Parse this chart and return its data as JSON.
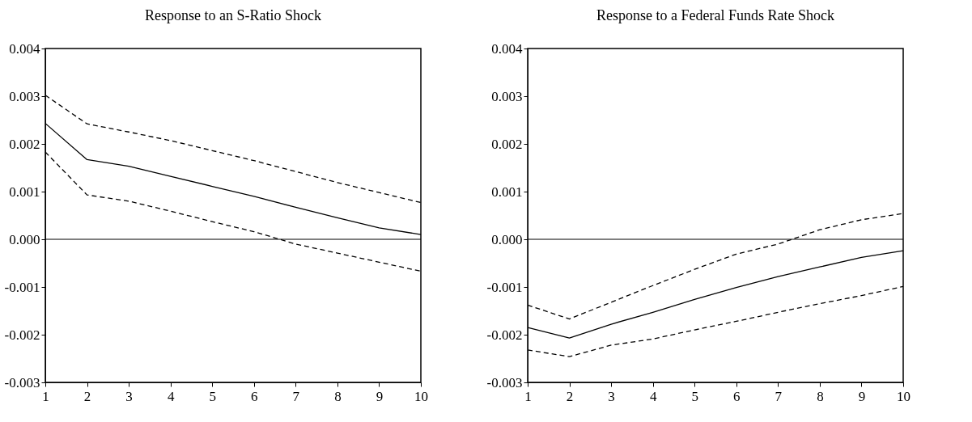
{
  "chart_data": [
    {
      "type": "line",
      "title": "Response to an S-Ratio Shock",
      "x": [
        1,
        2,
        3,
        4,
        5,
        6,
        7,
        8,
        9,
        10
      ],
      "series": [
        {
          "color": "#000000",
          "line_style": "dashed",
          "values": [
            0.00302,
            0.00242,
            0.00225,
            0.00207,
            0.00186,
            0.00165,
            0.00142,
            0.00119,
            0.00098,
            0.00077
          ]
        },
        {
          "color": "#000000",
          "line_style": "solid",
          "values": [
            0.00243,
            0.00167,
            0.00153,
            0.00132,
            0.00111,
            0.0009,
            0.00067,
            0.00045,
            0.00024,
            0.0001
          ]
        },
        {
          "color": "#000000",
          "line_style": "dashed",
          "values": [
            0.00183,
            0.00093,
            0.0008,
            0.00059,
            0.00037,
            0.00016,
            -0.0001,
            -0.00029,
            -0.00048,
            -0.00067
          ]
        }
      ],
      "xlim": [
        1,
        10
      ],
      "xticks": [
        1,
        2,
        3,
        4,
        5,
        6,
        7,
        8,
        9,
        10
      ],
      "ylim": [
        -0.003,
        0.004
      ],
      "yticks": [
        -0.003,
        -0.002,
        -0.001,
        {
          "value": 0,
          "label": "0.000"
        },
        0.001,
        0.002,
        0.003,
        0.004
      ],
      "ref_lines": [
        {
          "axis": "y",
          "value": 0,
          "color": "#000000"
        }
      ],
      "grid": false,
      "marker": "none"
    },
    {
      "type": "line",
      "title": "Response to a Federal Funds Rate Shock",
      "x": [
        1,
        2,
        3,
        4,
        5,
        6,
        7,
        8,
        9,
        10
      ],
      "series": [
        {
          "color": "#000000",
          "line_style": "dashed",
          "values": [
            -0.00138,
            -0.00167,
            -0.00132,
            -0.00097,
            -0.00063,
            -0.00031,
            -0.0001,
            0.0002,
            0.00041,
            0.00054
          ]
        },
        {
          "color": "#000000",
          "line_style": "solid",
          "values": [
            -0.00185,
            -0.00207,
            -0.00178,
            -0.00153,
            -0.00126,
            -0.00101,
            -0.00078,
            -0.00058,
            -0.00038,
            -0.00024
          ]
        },
        {
          "color": "#000000",
          "line_style": "dashed",
          "values": [
            -0.00232,
            -0.00246,
            -0.00222,
            -0.00209,
            -0.0019,
            -0.00172,
            -0.00153,
            -0.00135,
            -0.00118,
            -0.00099
          ]
        }
      ],
      "xlim": [
        1,
        10
      ],
      "xticks": [
        1,
        2,
        3,
        4,
        5,
        6,
        7,
        8,
        9,
        10
      ],
      "ylim": [
        -0.003,
        0.004
      ],
      "yticks": [
        -0.003,
        -0.002,
        -0.001,
        {
          "value": 0,
          "label": "0.000"
        },
        0.001,
        0.002,
        0.003,
        0.004
      ],
      "ref_lines": [
        {
          "axis": "y",
          "value": 0,
          "color": "#000000"
        }
      ],
      "grid": false,
      "marker": "none"
    }
  ]
}
